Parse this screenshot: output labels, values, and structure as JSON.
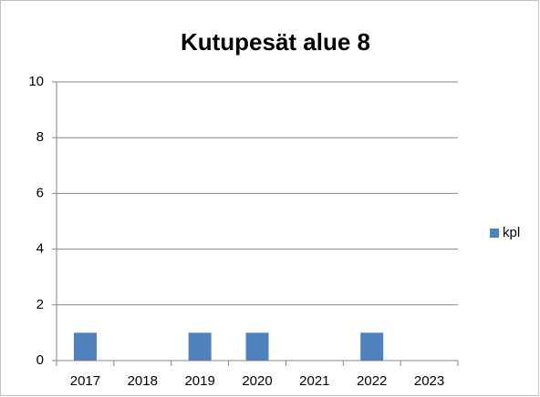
{
  "chart_data": {
    "type": "bar",
    "title": "Kutupesät alue 8",
    "categories": [
      "2017",
      "2018",
      "2019",
      "2020",
      "2021",
      "2022",
      "2023"
    ],
    "series": [
      {
        "name": "kpl",
        "color": "#4f81bd",
        "values": [
          1,
          0,
          1,
          1,
          0,
          1,
          0
        ]
      }
    ],
    "ylim": [
      0,
      10
    ],
    "yticks": [
      0,
      2,
      4,
      6,
      8,
      10
    ],
    "grid": true,
    "legend": "right"
  }
}
